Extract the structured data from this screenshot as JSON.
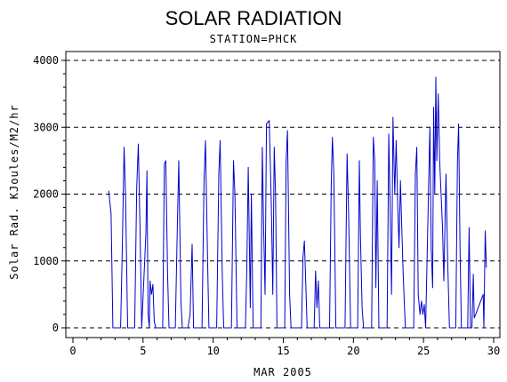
{
  "chart_data": {
    "type": "line",
    "title": "SOLAR RADIATION",
    "subtitle": "STATION=PHCK",
    "xlabel": "MAR 2005",
    "ylabel": "Solar Rad. KJoules/M2/hr",
    "xlim": [
      0,
      30
    ],
    "ylim": [
      0,
      4000
    ],
    "xticks": [
      0,
      5,
      10,
      15,
      20,
      25,
      30
    ],
    "yticks": [
      0,
      1000,
      2000,
      3000,
      4000
    ],
    "grid": "horizontal dashed at y ticks",
    "line_color": "#0000cc",
    "series": [
      {
        "values": [
          [
            2.55,
            2050
          ],
          [
            2.72,
            1700
          ],
          [
            2.85,
            0
          ],
          [
            3.4,
            0
          ],
          [
            3.52,
            1200
          ],
          [
            3.65,
            2700
          ],
          [
            3.75,
            2000
          ],
          [
            3.9,
            0
          ],
          [
            4.4,
            0
          ],
          [
            4.55,
            2100
          ],
          [
            4.66,
            2750
          ],
          [
            4.78,
            1500
          ],
          [
            4.9,
            0
          ],
          [
            5.2,
            1400
          ],
          [
            5.28,
            2350
          ],
          [
            5.36,
            200
          ],
          [
            5.45,
            0
          ],
          [
            5.5,
            700
          ],
          [
            5.6,
            500
          ],
          [
            5.7,
            650
          ],
          [
            5.8,
            100
          ],
          [
            5.9,
            0
          ],
          [
            6.4,
            0
          ],
          [
            6.52,
            2450
          ],
          [
            6.62,
            2500
          ],
          [
            6.75,
            800
          ],
          [
            6.85,
            0
          ],
          [
            7.3,
            0
          ],
          [
            7.45,
            1600
          ],
          [
            7.55,
            2500
          ],
          [
            7.7,
            400
          ],
          [
            7.8,
            0
          ],
          [
            8.2,
            0
          ],
          [
            8.35,
            200
          ],
          [
            8.5,
            1250
          ],
          [
            8.6,
            0
          ],
          [
            9.2,
            0
          ],
          [
            9.35,
            2200
          ],
          [
            9.45,
            2800
          ],
          [
            9.6,
            1000
          ],
          [
            9.7,
            0
          ],
          [
            10.25,
            0
          ],
          [
            10.4,
            2300
          ],
          [
            10.5,
            2800
          ],
          [
            10.65,
            800
          ],
          [
            10.75,
            0
          ],
          [
            11.3,
            0
          ],
          [
            11.45,
            2500
          ],
          [
            11.55,
            2000
          ],
          [
            11.7,
            0
          ],
          [
            12.3,
            0
          ],
          [
            12.4,
            900
          ],
          [
            12.5,
            2400
          ],
          [
            12.65,
            300
          ],
          [
            12.72,
            2000
          ],
          [
            12.85,
            0
          ],
          [
            13.4,
            0
          ],
          [
            13.5,
            2700
          ],
          [
            13.6,
            1500
          ],
          [
            13.7,
            500
          ],
          [
            13.8,
            3050
          ],
          [
            14.0,
            3100
          ],
          [
            14.15,
            1800
          ],
          [
            14.25,
            500
          ],
          [
            14.35,
            2700
          ],
          [
            14.45,
            2000
          ],
          [
            14.55,
            0
          ],
          [
            15.1,
            0
          ],
          [
            15.2,
            2500
          ],
          [
            15.3,
            2950
          ],
          [
            15.45,
            500
          ],
          [
            15.55,
            0
          ],
          [
            16.3,
            0
          ],
          [
            16.4,
            1050
          ],
          [
            16.5,
            1300
          ],
          [
            16.6,
            700
          ],
          [
            16.7,
            0
          ],
          [
            17.2,
            0
          ],
          [
            17.3,
            850
          ],
          [
            17.4,
            300
          ],
          [
            17.5,
            700
          ],
          [
            17.6,
            0
          ],
          [
            18.3,
            0
          ],
          [
            18.42,
            2150
          ],
          [
            18.5,
            2850
          ],
          [
            18.6,
            2300
          ],
          [
            18.75,
            0
          ],
          [
            19.4,
            0
          ],
          [
            19.55,
            2600
          ],
          [
            19.65,
            1800
          ],
          [
            19.8,
            0
          ],
          [
            20.3,
            0
          ],
          [
            20.42,
            2500
          ],
          [
            20.5,
            1400
          ],
          [
            20.62,
            300
          ],
          [
            20.72,
            0
          ],
          [
            21.3,
            0
          ],
          [
            21.42,
            2850
          ],
          [
            21.52,
            2500
          ],
          [
            21.6,
            600
          ],
          [
            21.7,
            2200
          ],
          [
            21.82,
            0
          ],
          [
            22.4,
            0
          ],
          [
            22.52,
            2900
          ],
          [
            22.62,
            1800
          ],
          [
            22.72,
            500
          ],
          [
            22.82,
            3150
          ],
          [
            22.95,
            2000
          ],
          [
            23.05,
            2800
          ],
          [
            23.15,
            1900
          ],
          [
            23.25,
            1200
          ],
          [
            23.35,
            2200
          ],
          [
            23.45,
            1500
          ],
          [
            23.55,
            800
          ],
          [
            23.7,
            0
          ],
          [
            24.3,
            0
          ],
          [
            24.42,
            2300
          ],
          [
            24.52,
            2700
          ],
          [
            24.62,
            500
          ],
          [
            24.75,
            200
          ],
          [
            24.85,
            400
          ],
          [
            24.95,
            200
          ],
          [
            25.05,
            350
          ],
          [
            25.15,
            0
          ],
          [
            25.45,
            3000
          ],
          [
            25.55,
            1200
          ],
          [
            25.65,
            600
          ],
          [
            25.72,
            3300
          ],
          [
            25.8,
            2000
          ],
          [
            25.88,
            3750
          ],
          [
            25.95,
            2500
          ],
          [
            26.05,
            3500
          ],
          [
            26.15,
            2500
          ],
          [
            26.25,
            2000
          ],
          [
            26.35,
            1500
          ],
          [
            26.45,
            700
          ],
          [
            26.6,
            2300
          ],
          [
            26.72,
            1000
          ],
          [
            26.85,
            0
          ],
          [
            27.3,
            0
          ],
          [
            27.42,
            2500
          ],
          [
            27.5,
            3050
          ],
          [
            27.6,
            1200
          ],
          [
            27.7,
            0
          ],
          [
            28.15,
            0
          ],
          [
            28.25,
            1500
          ],
          [
            28.35,
            0
          ],
          [
            28.45,
            0
          ],
          [
            28.55,
            800
          ],
          [
            28.62,
            150
          ],
          [
            28.72,
            200
          ],
          [
            29.25,
            500
          ],
          [
            29.3,
            0
          ],
          [
            29.4,
            1450
          ],
          [
            29.48,
            900
          ]
        ]
      }
    ]
  }
}
